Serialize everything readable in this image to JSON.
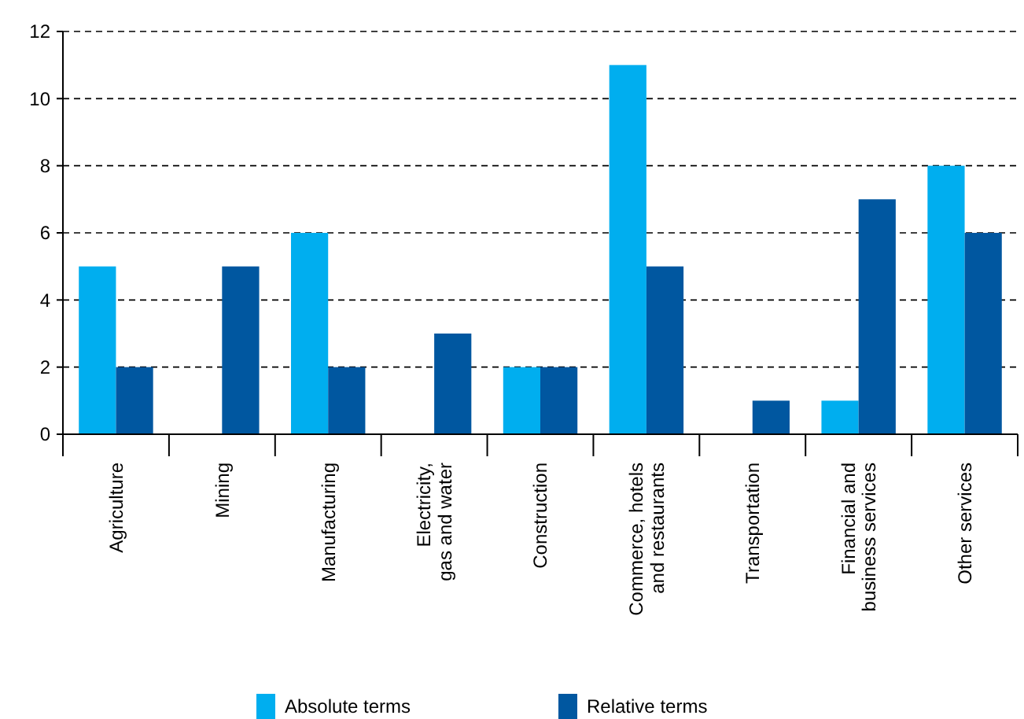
{
  "chart_data": {
    "type": "bar",
    "categories": [
      "Agriculture",
      "Mining",
      "Manufacturing",
      "Electricity,\ngas and water",
      "Construction",
      "Commerce, hotels\nand restaurants",
      "Transportation",
      "Financial and\nbusiness services",
      "Other services"
    ],
    "series": [
      {
        "name": "Absolute terms",
        "color": "#00aeef",
        "values": [
          5,
          0,
          6,
          0,
          2,
          11,
          0,
          1,
          8
        ]
      },
      {
        "name": "Relative terms",
        "color": "#0057a0",
        "values": [
          2,
          5,
          2,
          3,
          2,
          5,
          1,
          7,
          6
        ]
      }
    ],
    "ylim": [
      0,
      12
    ],
    "yticks": [
      0,
      2,
      4,
      6,
      8,
      10,
      12
    ],
    "grid": "y",
    "legend": "bottom"
  }
}
